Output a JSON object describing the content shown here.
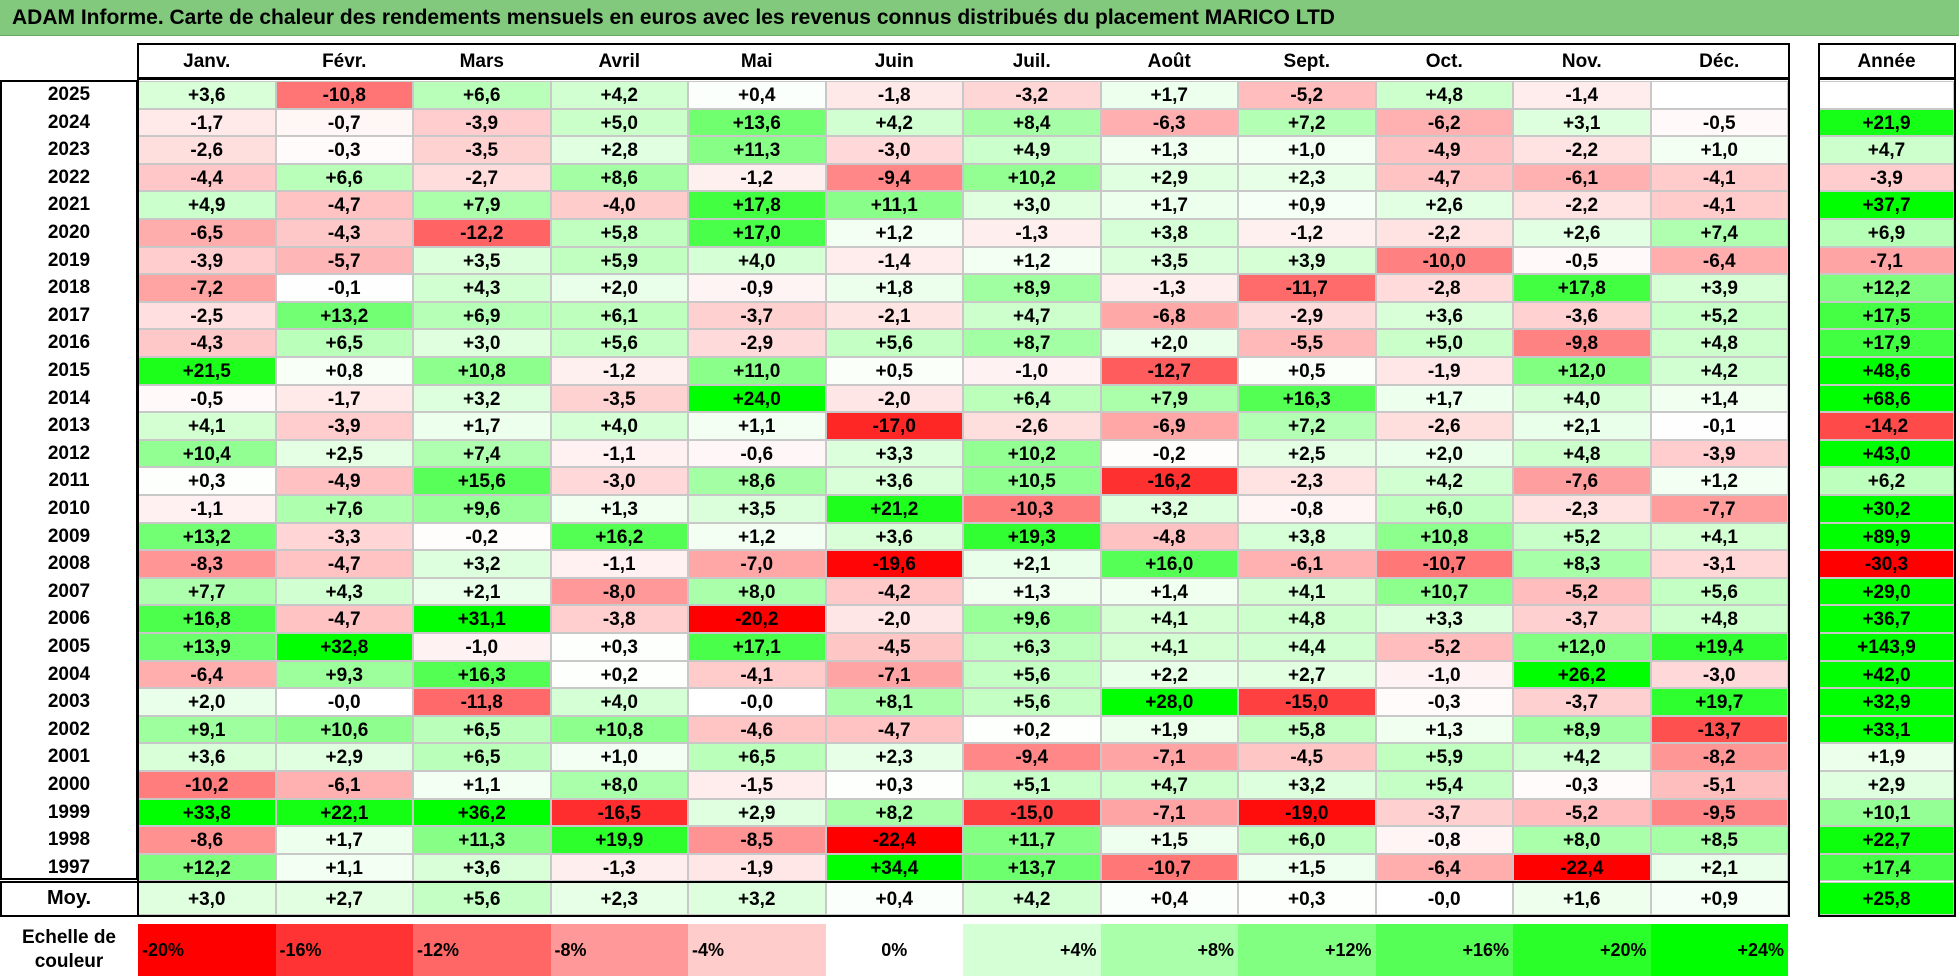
{
  "title": "ADAM Informe. Carte de chaleur des rendements mensuels en euros avec les revenus connus distribués du placement MARICO LTD",
  "chart_data": {
    "type": "heatmap",
    "columns": [
      "Janv.",
      "Févr.",
      "Mars",
      "Avril",
      "Mai",
      "Juin",
      "Juil.",
      "Août",
      "Sept.",
      "Oct.",
      "Nov.",
      "Déc."
    ],
    "annual_label": "Année",
    "rows": [
      {
        "year": "2025",
        "values": [
          "+3,6",
          "-10,8",
          "+6,6",
          "+4,2",
          "+0,4",
          "-1,8",
          "-3,2",
          "+1,7",
          "-5,2",
          "+4,8",
          "-1,4",
          ""
        ],
        "annual": ""
      },
      {
        "year": "2024",
        "values": [
          "-1,7",
          "-0,7",
          "-3,9",
          "+5,0",
          "+13,6",
          "+4,2",
          "+8,4",
          "-6,3",
          "+7,2",
          "-6,2",
          "+3,1",
          "-0,5"
        ],
        "annual": "+21,9"
      },
      {
        "year": "2023",
        "values": [
          "-2,6",
          "-0,3",
          "-3,5",
          "+2,8",
          "+11,3",
          "-3,0",
          "+4,9",
          "+1,3",
          "+1,0",
          "-4,9",
          "-2,2",
          "+1,0"
        ],
        "annual": "+4,7"
      },
      {
        "year": "2022",
        "values": [
          "-4,4",
          "+6,6",
          "-2,7",
          "+8,6",
          "-1,2",
          "-9,4",
          "+10,2",
          "+2,9",
          "+2,3",
          "-4,7",
          "-6,1",
          "-4,1"
        ],
        "annual": "-3,9"
      },
      {
        "year": "2021",
        "values": [
          "+4,9",
          "-4,7",
          "+7,9",
          "-4,0",
          "+17,8",
          "+11,1",
          "+3,0",
          "+1,7",
          "+0,9",
          "+2,6",
          "-2,2",
          "-4,1"
        ],
        "annual": "+37,7"
      },
      {
        "year": "2020",
        "values": [
          "-6,5",
          "-4,3",
          "-12,2",
          "+5,8",
          "+17,0",
          "+1,2",
          "-1,3",
          "+3,8",
          "-1,2",
          "-2,2",
          "+2,6",
          "+7,4"
        ],
        "annual": "+6,9"
      },
      {
        "year": "2019",
        "values": [
          "-3,9",
          "-5,7",
          "+3,5",
          "+5,9",
          "+4,0",
          "-1,4",
          "+1,2",
          "+3,5",
          "+3,9",
          "-10,0",
          "-0,5",
          "-6,4"
        ],
        "annual": "-7,1"
      },
      {
        "year": "2018",
        "values": [
          "-7,2",
          "-0,1",
          "+4,3",
          "+2,0",
          "-0,9",
          "+1,8",
          "+8,9",
          "-1,3",
          "-11,7",
          "-2,8",
          "+17,8",
          "+3,9"
        ],
        "annual": "+12,2"
      },
      {
        "year": "2017",
        "values": [
          "-2,5",
          "+13,2",
          "+6,9",
          "+6,1",
          "-3,7",
          "-2,1",
          "+4,7",
          "-6,8",
          "-2,9",
          "+3,6",
          "-3,6",
          "+5,2"
        ],
        "annual": "+17,5"
      },
      {
        "year": "2016",
        "values": [
          "-4,3",
          "+6,5",
          "+3,0",
          "+5,6",
          "-2,9",
          "+5,6",
          "+8,7",
          "+2,0",
          "-5,5",
          "+5,0",
          "-9,8",
          "+4,8"
        ],
        "annual": "+17,9"
      },
      {
        "year": "2015",
        "values": [
          "+21,5",
          "+0,8",
          "+10,8",
          "-1,2",
          "+11,0",
          "+0,5",
          "-1,0",
          "-12,7",
          "+0,5",
          "-1,9",
          "+12,0",
          "+4,2"
        ],
        "annual": "+48,6"
      },
      {
        "year": "2014",
        "values": [
          "-0,5",
          "-1,7",
          "+3,2",
          "-3,5",
          "+24,0",
          "-2,0",
          "+6,4",
          "+7,9",
          "+16,3",
          "+1,7",
          "+4,0",
          "+1,4"
        ],
        "annual": "+68,6"
      },
      {
        "year": "2013",
        "values": [
          "+4,1",
          "-3,9",
          "+1,7",
          "+4,0",
          "+1,1",
          "-17,0",
          "-2,6",
          "-6,9",
          "+7,2",
          "-2,6",
          "+2,1",
          "-0,1"
        ],
        "annual": "-14,2"
      },
      {
        "year": "2012",
        "values": [
          "+10,4",
          "+2,5",
          "+7,4",
          "-1,1",
          "-0,6",
          "+3,3",
          "+10,2",
          "-0,2",
          "+2,5",
          "+2,0",
          "+4,8",
          "-3,9"
        ],
        "annual": "+43,0"
      },
      {
        "year": "2011",
        "values": [
          "+0,3",
          "-4,9",
          "+15,6",
          "-3,0",
          "+8,6",
          "+3,6",
          "+10,5",
          "-16,2",
          "-2,3",
          "+4,2",
          "-7,6",
          "+1,2"
        ],
        "annual": "+6,2"
      },
      {
        "year": "2010",
        "values": [
          "-1,1",
          "+7,6",
          "+9,6",
          "+1,3",
          "+3,5",
          "+21,2",
          "-10,3",
          "+3,2",
          "-0,8",
          "+6,0",
          "-2,3",
          "-7,7"
        ],
        "annual": "+30,2"
      },
      {
        "year": "2009",
        "values": [
          "+13,2",
          "-3,3",
          "-0,2",
          "+16,2",
          "+1,2",
          "+3,6",
          "+19,3",
          "-4,8",
          "+3,8",
          "+10,8",
          "+5,2",
          "+4,1"
        ],
        "annual": "+89,9"
      },
      {
        "year": "2008",
        "values": [
          "-8,3",
          "-4,7",
          "+3,2",
          "-1,1",
          "-7,0",
          "-19,6",
          "+2,1",
          "+16,0",
          "-6,1",
          "-10,7",
          "+8,3",
          "-3,1"
        ],
        "annual": "-30,3"
      },
      {
        "year": "2007",
        "values": [
          "+7,7",
          "+4,3",
          "+2,1",
          "-8,0",
          "+8,0",
          "-4,2",
          "+1,3",
          "+1,4",
          "+4,1",
          "+10,7",
          "-5,2",
          "+5,6"
        ],
        "annual": "+29,0"
      },
      {
        "year": "2006",
        "values": [
          "+16,8",
          "-4,7",
          "+31,1",
          "-3,8",
          "-20,2",
          "-2,0",
          "+9,6",
          "+4,1",
          "+4,8",
          "+3,3",
          "-3,7",
          "+4,8"
        ],
        "annual": "+36,7"
      },
      {
        "year": "2005",
        "values": [
          "+13,9",
          "+32,8",
          "-1,0",
          "+0,3",
          "+17,1",
          "-4,5",
          "+6,3",
          "+4,1",
          "+4,4",
          "-5,2",
          "+12,0",
          "+19,4"
        ],
        "annual": "+143,9"
      },
      {
        "year": "2004",
        "values": [
          "-6,4",
          "+9,3",
          "+16,3",
          "+0,2",
          "-4,1",
          "-7,1",
          "+5,6",
          "+2,2",
          "+2,7",
          "-1,0",
          "+26,2",
          "-3,0"
        ],
        "annual": "+42,0"
      },
      {
        "year": "2003",
        "values": [
          "+2,0",
          "-0,0",
          "-11,8",
          "+4,0",
          "-0,0",
          "+8,1",
          "+5,6",
          "+28,0",
          "-15,0",
          "-0,3",
          "-3,7",
          "+19,7"
        ],
        "annual": "+32,9"
      },
      {
        "year": "2002",
        "values": [
          "+9,1",
          "+10,6",
          "+6,5",
          "+10,8",
          "-4,6",
          "-4,7",
          "+0,2",
          "+1,9",
          "+5,8",
          "+1,3",
          "+8,9",
          "-13,7"
        ],
        "annual": "+33,1"
      },
      {
        "year": "2001",
        "values": [
          "+3,6",
          "+2,9",
          "+6,5",
          "+1,0",
          "+6,5",
          "+2,3",
          "-9,4",
          "-7,1",
          "-4,5",
          "+5,9",
          "+4,2",
          "-8,2"
        ],
        "annual": "+1,9"
      },
      {
        "year": "2000",
        "values": [
          "-10,2",
          "-6,1",
          "+1,1",
          "+8,0",
          "-1,5",
          "+0,3",
          "+5,1",
          "+4,7",
          "+3,2",
          "+5,4",
          "-0,3",
          "-5,1"
        ],
        "annual": "+2,9"
      },
      {
        "year": "1999",
        "values": [
          "+33,8",
          "+22,1",
          "+36,2",
          "-16,5",
          "+2,9",
          "+8,2",
          "-15,0",
          "-7,1",
          "-19,0",
          "-3,7",
          "-5,2",
          "-9,5"
        ],
        "annual": "+10,1"
      },
      {
        "year": "1998",
        "values": [
          "-8,6",
          "+1,7",
          "+11,3",
          "+19,9",
          "-8,5",
          "-22,4",
          "+11,7",
          "+1,5",
          "+6,0",
          "-0,8",
          "+8,0",
          "+8,5"
        ],
        "annual": "+22,7"
      },
      {
        "year": "1997",
        "values": [
          "+12,2",
          "+1,1",
          "+3,6",
          "-1,3",
          "-1,9",
          "+34,4",
          "+13,7",
          "-10,7",
          "+1,5",
          "-6,4",
          "-22,4",
          "+2,1"
        ],
        "annual": "+17,4"
      }
    ],
    "average": {
      "label": "Moy.",
      "values": [
        "+3,0",
        "+2,7",
        "+5,6",
        "+2,3",
        "+3,2",
        "+0,4",
        "+4,2",
        "+0,4",
        "+0,3",
        "-0,0",
        "+1,6",
        "+0,9"
      ],
      "annual": "+25,8"
    },
    "scale": {
      "label_line1": "Echelle de",
      "label_line2": "couleur",
      "stops": [
        {
          "label": "-20%",
          "value": -20
        },
        {
          "label": "-16%",
          "value": -16
        },
        {
          "label": "-12%",
          "value": -12
        },
        {
          "label": "-8%",
          "value": -8
        },
        {
          "label": "-4%",
          "value": -4
        },
        {
          "label": "0%",
          "value": 0
        },
        {
          "label": "+4%",
          "value": 4
        },
        {
          "label": "+8%",
          "value": 8
        },
        {
          "label": "+12%",
          "value": 12
        },
        {
          "label": "+16%",
          "value": 16
        },
        {
          "label": "+20%",
          "value": 20
        },
        {
          "label": "+24%",
          "value": 24
        }
      ]
    },
    "colors": {
      "negative": "#ff0000",
      "neutral": "#ffffff",
      "positive": "#00ff00"
    }
  }
}
